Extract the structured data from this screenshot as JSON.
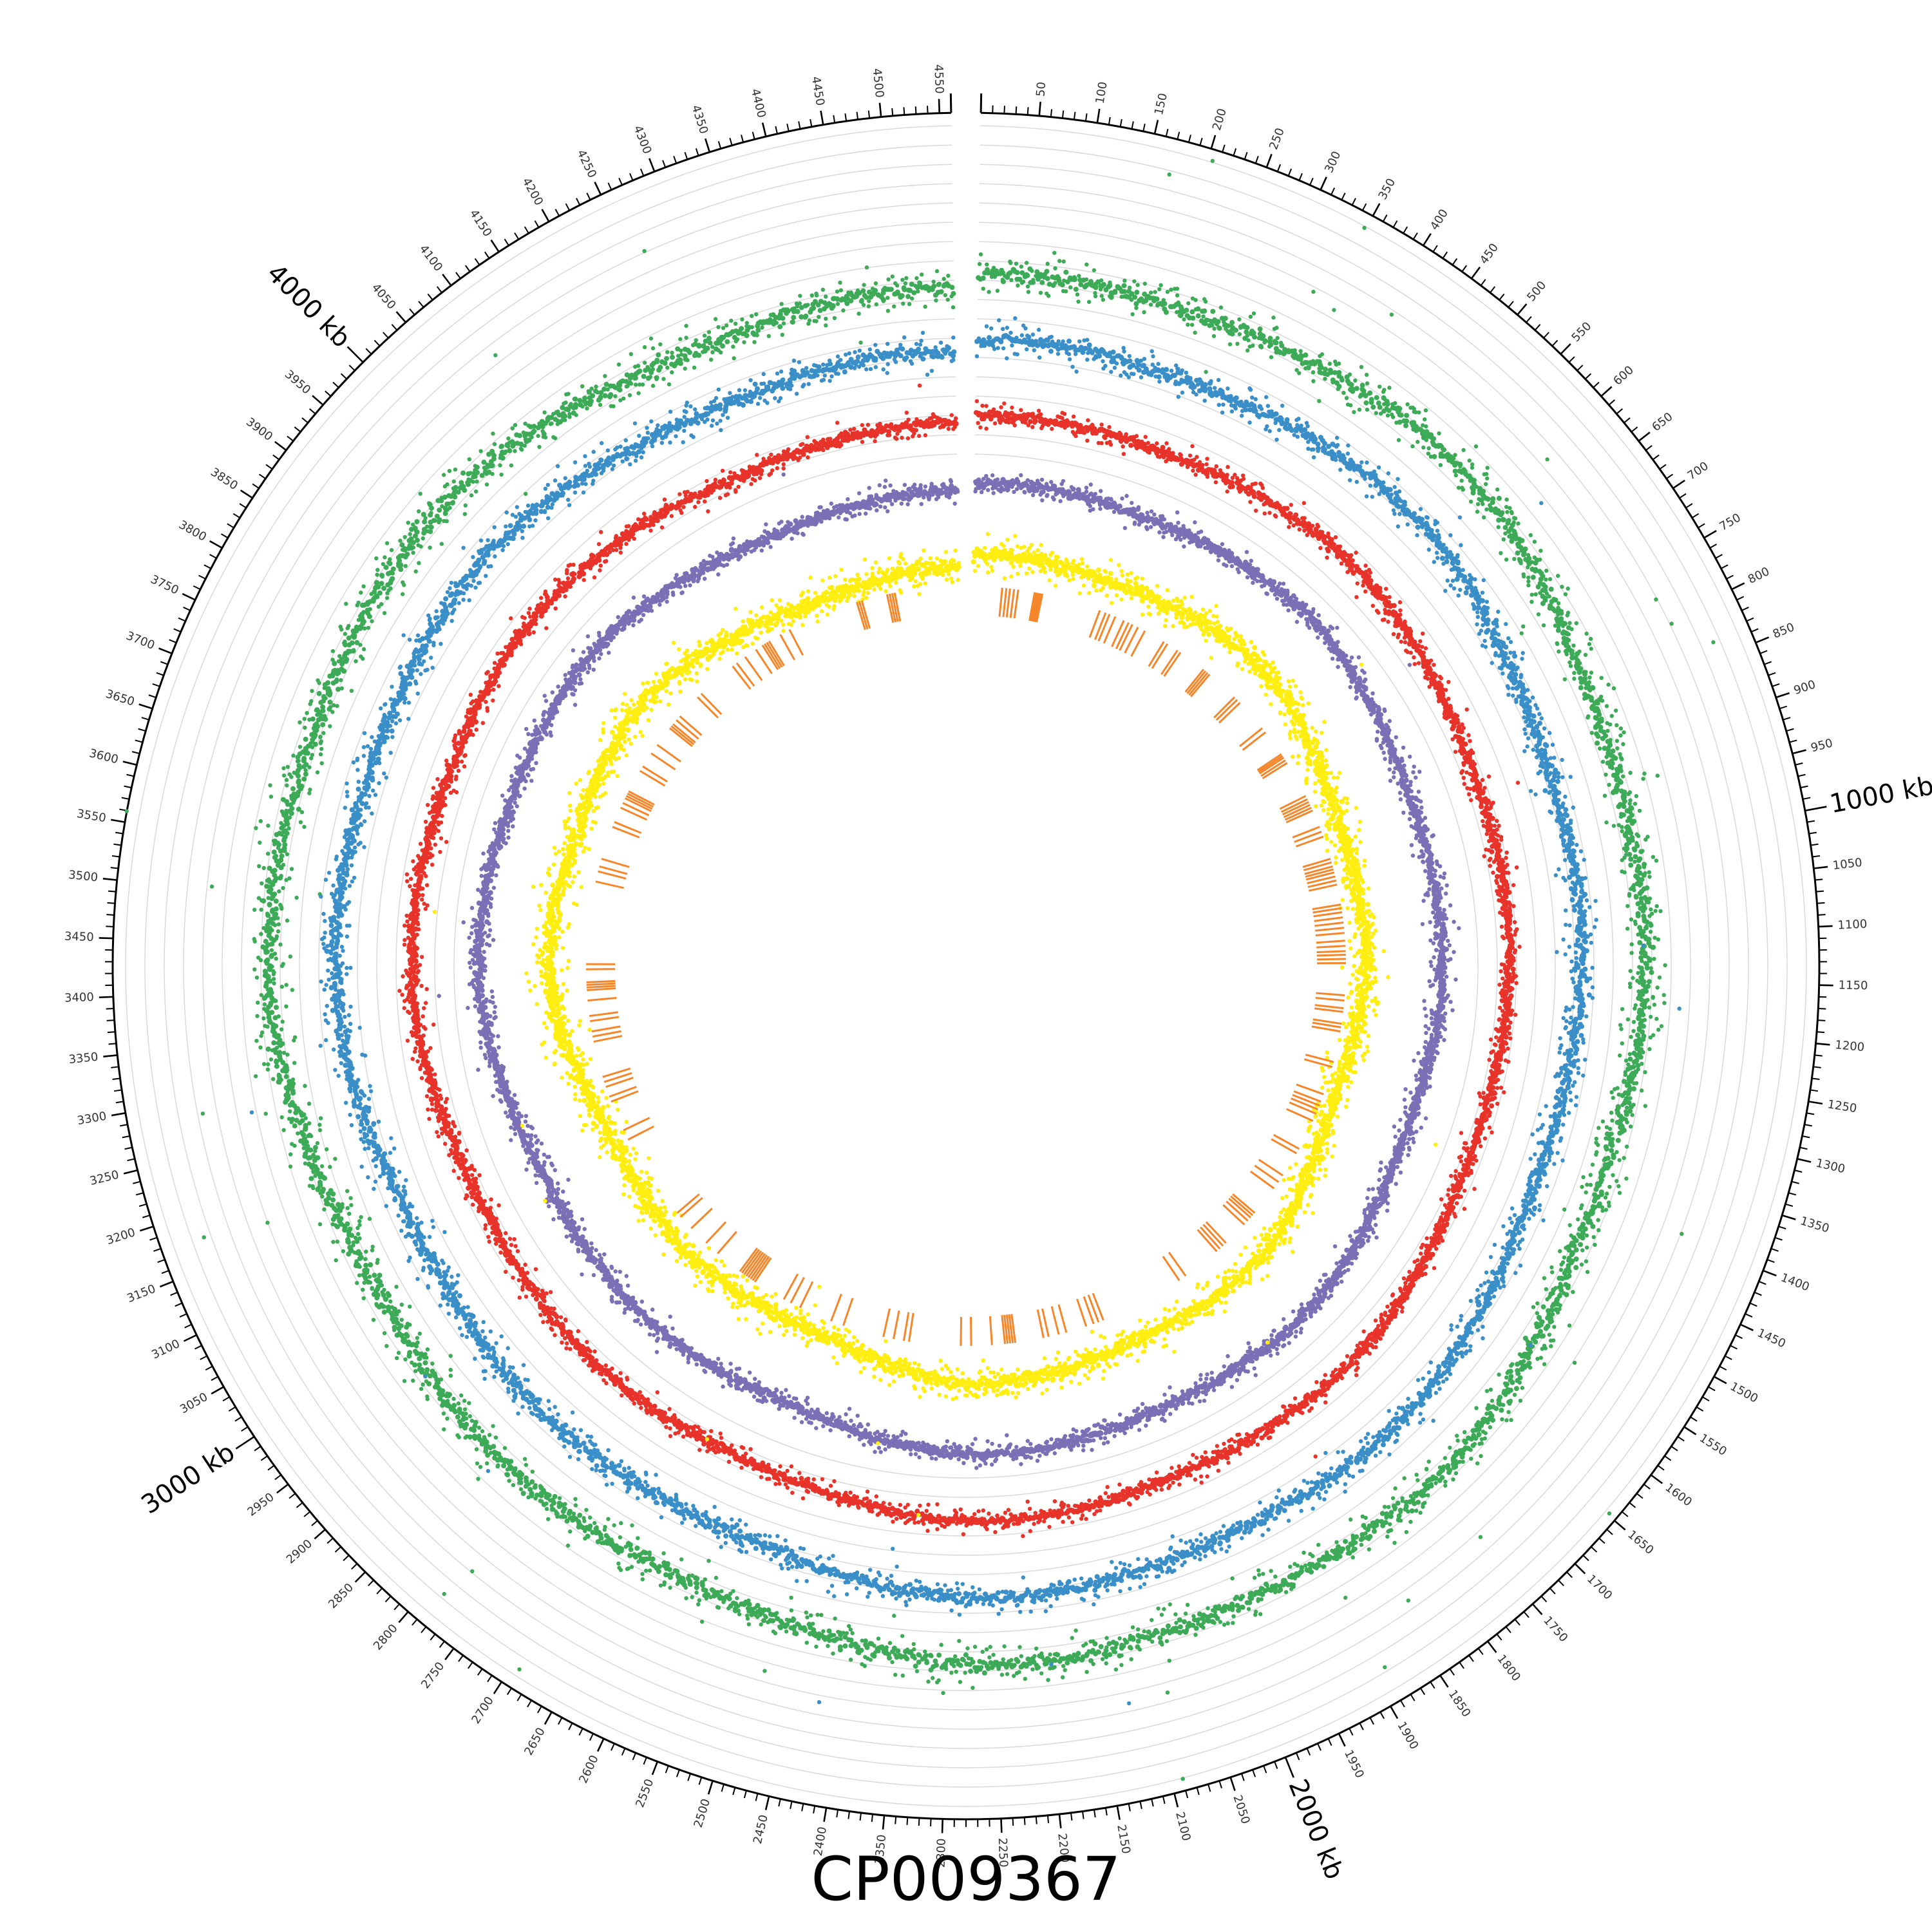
{
  "genome": {
    "name": "CP009367",
    "length_kb": 4560,
    "tick_every_kb": 10,
    "label_every_kb": 50,
    "major_labels_kb": [
      1000,
      2000,
      3000,
      4000
    ],
    "major_unit": "kb"
  },
  "tracks": [
    {
      "name": "",
      "color": "#3daa57",
      "baseline": 0.3,
      "spread": 0.09,
      "outlier_rate": 0.015
    },
    {
      "name": "",
      "color": "#3a8fc8",
      "baseline": 0.3,
      "spread": 0.06,
      "outlier_rate": 0.008
    },
    {
      "name": "",
      "color": "#e8332a",
      "baseline": 0.3,
      "spread": 0.035,
      "outlier_rate": 0.003
    },
    {
      "name": "",
      "color": "#7b6fb5",
      "baseline": 0.3,
      "spread": 0.04,
      "outlier_rate": 0.003
    },
    {
      "name": "",
      "color": "#ffee10",
      "baseline": 0.3,
      "spread": 0.07,
      "outlier_rate": 0.008
    }
  ],
  "feature_track": {
    "color": "#f5862a",
    "features_kb": [
      57,
      65,
      72,
      80,
      88,
      120,
      123,
      126,
      129,
      132,
      135,
      250,
      262,
      270,
      282,
      300,
      310,
      318,
      330,
      345,
      387,
      395,
      418,
      425,
      480,
      485,
      490,
      495,
      560,
      567,
      575,
      640,
      650,
      702,
      706,
      710,
      716,
      722,
      795,
      802,
      808,
      814,
      820,
      826,
      860,
      870,
      880,
      925,
      932,
      940,
      946,
      952,
      960,
      968,
      976,
      1015,
      1022,
      1030,
      1040,
      1050,
      1060,
      1070,
      1085,
      1095,
      1105,
      1112,
      1120,
      1128,
      1190,
      1200,
      1215,
      1222,
      1245,
      1252,
      1260,
      1320,
      1330,
      1385,
      1400,
      1408,
      1416,
      1425,
      1440,
      1500,
      1510,
      1560,
      1575,
      1590,
      1650,
      1656,
      1662,
      1670,
      1680,
      1730,
      1738,
      1746,
      1754,
      1830,
      1845,
      2010,
      2020,
      2030,
      2045,
      2085,
      2100,
      2120,
      2130,
      2185,
      2190,
      2195,
      2200,
      2205,
      2230,
      2270,
      2290,
      2390,
      2400,
      2420,
      2440,
      2520,
      2545,
      2610,
      2630,
      2645,
      2710,
      2715,
      2720,
      2725,
      2730,
      2735,
      2740,
      2745,
      2800,
      2830,
      2870,
      2900,
      2910,
      3080,
      3100,
      3160,
      3170,
      3190,
      3200,
      3210,
      3280,
      3290,
      3300,
      3320,
      3330,
      3360,
      3380,
      3385,
      3390,
      3395,
      3420,
      3430,
      3590,
      3610,
      3620,
      3635,
      3700,
      3710,
      3740,
      3750,
      3760,
      3765,
      3770,
      3775,
      3820,
      3830,
      3860,
      3880,
      3920,
      3925,
      3930,
      3940,
      3950,
      4000,
      4010,
      4090,
      4100,
      4120,
      4145,
      4160,
      4165,
      4170,
      4175,
      4200,
      4220,
      4360,
      4365,
      4370,
      4420,
      4425,
      4430,
      4435
    ]
  }
}
